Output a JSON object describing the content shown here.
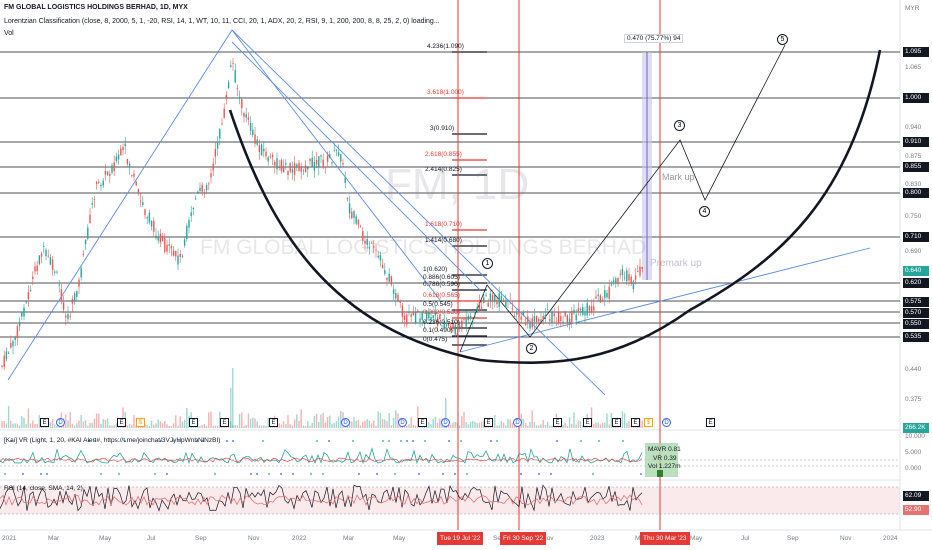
{
  "header": {
    "title": "FM GLOBAL LOGISTICS HOLDINGS BERHAD, 1D, MYX",
    "indicator": "Lorentzian Classification (close, 8, 2000, 5, 1, -20, RSI, 14, 1, WT, 10, 11, CCI, 20, 1, ADX, 20, 2, RSI, 9, 1, 200, 200, 8, 8, 25, 2, 0) loading...",
    "vol_label": "Vol",
    "currency": "MYR"
  },
  "watermark": {
    "symbol": "FM, 1D",
    "name": "FM GLOBAL LOGISTICS HOLDINGS BERHAD"
  },
  "annotations": {
    "mark_up": "Mark up",
    "premark_up": "Premark up",
    "measure": "0.470 (75.77%) 94"
  },
  "waves": [
    "1",
    "2",
    "3",
    "4",
    "5"
  ],
  "fib_levels": [
    {
      "label": "4.236(1.090)",
      "color": "#131722"
    },
    {
      "label": "3.618(1.000)",
      "color": "#e53935"
    },
    {
      "label": "3(0.910)",
      "color": "#131722"
    },
    {
      "label": "2.618(0.855)",
      "color": "#e53935"
    },
    {
      "label": "2.414(0.825)",
      "color": "#131722"
    },
    {
      "label": "1.618(0.710)",
      "color": "#e53935"
    },
    {
      "label": "1.414(0.680)",
      "color": "#131722"
    },
    {
      "label": "1(0.620)",
      "color": "#131722"
    },
    {
      "label": "0.886(0.605)",
      "color": "#131722"
    },
    {
      "label": "0.786(0.590)",
      "color": "#131722"
    },
    {
      "label": "0.618(0.565)",
      "color": "#e53935"
    },
    {
      "label": "0.5(0.545)",
      "color": "#131722"
    },
    {
      "label": "0.382(0.530)",
      "color": "#e53935"
    },
    {
      "label": "0.236(0.510)",
      "color": "#131722"
    },
    {
      "label": "0.1(0.490)",
      "color": "#131722"
    },
    {
      "label": "0(0.475)",
      "color": "#131722"
    }
  ],
  "price_axis": {
    "boxed": [
      "1.095",
      "1.000",
      "0.910",
      "0.855",
      "0.800",
      "0.710",
      "0.640",
      "0.620",
      "0.575",
      "0.570",
      "0.550",
      "0.535"
    ],
    "ticks": [
      "1.065",
      "0.940",
      "0.875",
      "0.830",
      "0.750",
      "0.690",
      "0.440",
      "0.375"
    ]
  },
  "pane2": {
    "label": "[Kai] VR (Light, 1, 20, #KAI Alert#, https://t.me/joinchat/3VJyHpWnbNlNzBI)",
    "ticks": [
      "10.000",
      "5.000",
      "0.000"
    ],
    "tooltip": [
      "MAVR 0.81",
      "VR 0.39",
      "Vol 1.227m"
    ],
    "vol_box": "266.2K"
  },
  "pane3": {
    "label": "RSI (14, close, SMA, 14, 2)",
    "box1": "62.09",
    "box2": "52.90"
  },
  "time_axis": {
    "labels": [
      "2021",
      "Mar",
      "May",
      "Jul",
      "Sep",
      "Nov",
      "2022",
      "Mar",
      "May",
      "Sep",
      "Nov",
      "2023",
      "Mar",
      "May",
      "Jul",
      "Sep",
      "Nov",
      "2024"
    ],
    "highlighted": [
      "Tue 19 Jul '22",
      "Fri 30 Sep '22",
      "Thu 30 Mar '23"
    ]
  },
  "events": [
    "E",
    "D",
    "E",
    "$",
    "E",
    "E",
    "E",
    "D",
    "D",
    "E",
    "D",
    "E",
    "D",
    "E",
    "E",
    "E",
    "E",
    "$",
    "D",
    "E"
  ]
}
